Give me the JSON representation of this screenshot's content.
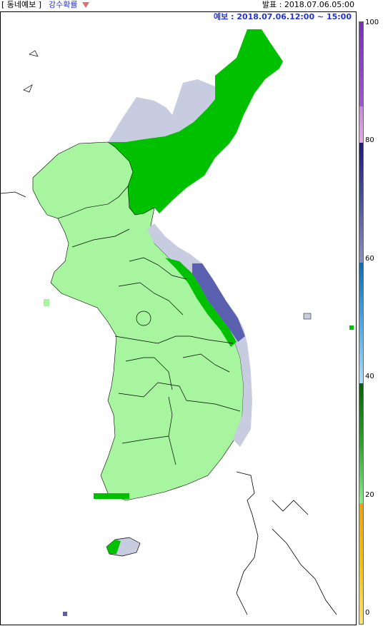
{
  "header": {
    "tag": "[ 동네예보 ]",
    "selected_layer": "강수확률",
    "issued": "발표 : 2018.07.06.05:00"
  },
  "map": {
    "valid_time": "예보 : 2018.07.06.12:00 ~ 15:00"
  },
  "legend": {
    "labels": [
      "100",
      "80",
      "60",
      "40",
      "20",
      "0"
    ],
    "colors": {
      "0-20": "#f5c400",
      "20-40": "#33cc33",
      "40-60": "#66ccff",
      "60-80": "#5555aa",
      "80-100": "#cc66cc"
    }
  },
  "colors": {
    "light_green": "#a7f59e",
    "green": "#00c000",
    "lavender": "#c8cce0",
    "slate_blue": "#5a5fb0"
  }
}
